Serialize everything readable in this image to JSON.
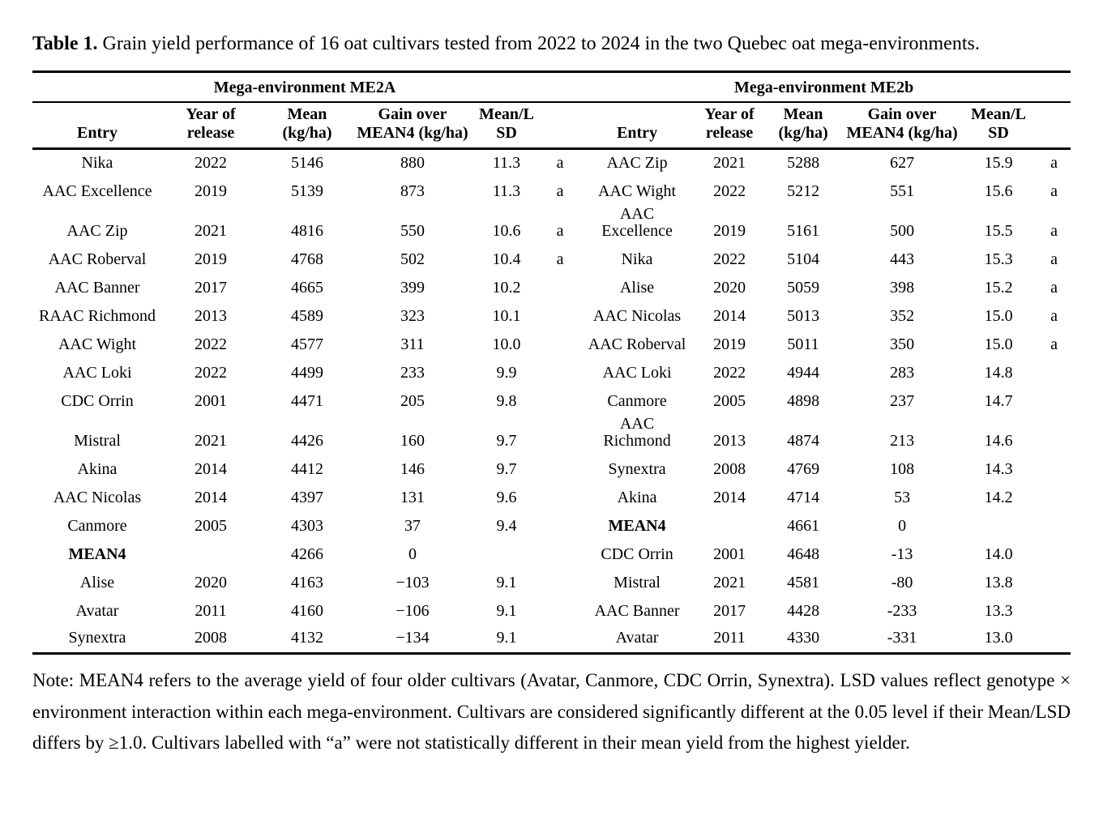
{
  "caption": {
    "label": "Table 1.",
    "text": "Grain yield performance of 16 oat cultivars tested from 2022 to 2024 in the two Quebec oat mega-environments."
  },
  "table": {
    "group_headers": [
      "Mega-environment ME2A",
      "Mega-environment ME2b"
    ],
    "columns": {
      "entry": "Entry",
      "year_l1": "Year of",
      "year_l2": "release",
      "mean_l1": "Mean",
      "mean_l2": "(kg/ha)",
      "gain_l1": "Gain over",
      "gain_l2": "MEAN4 (kg/ha)",
      "lsd_l1": "Mean/L",
      "lsd_l2": "SD",
      "sig": ""
    },
    "rows_me2a": [
      {
        "entry": "Nika",
        "year": "2022",
        "mean": "5146",
        "gain": "880",
        "mean_lsd": "11.3",
        "sig": "a"
      },
      {
        "entry": "AAC Excellence",
        "year": "2019",
        "mean": "5139",
        "gain": "873",
        "mean_lsd": "11.3",
        "sig": "a"
      },
      {
        "entry": "AAC Zip",
        "year": "2021",
        "mean": "4816",
        "gain": "550",
        "mean_lsd": "10.6",
        "sig": "a"
      },
      {
        "entry": "AAC Roberval",
        "year": "2019",
        "mean": "4768",
        "gain": "502",
        "mean_lsd": "10.4",
        "sig": "a"
      },
      {
        "entry": "AAC Banner",
        "year": "2017",
        "mean": "4665",
        "gain": "399",
        "mean_lsd": "10.2",
        "sig": ""
      },
      {
        "entry": "RAAC Richmond",
        "year": "2013",
        "mean": "4589",
        "gain": "323",
        "mean_lsd": "10.1",
        "sig": ""
      },
      {
        "entry": "AAC Wight",
        "year": "2022",
        "mean": "4577",
        "gain": "311",
        "mean_lsd": "10.0",
        "sig": ""
      },
      {
        "entry": "AAC Loki",
        "year": "2022",
        "mean": "4499",
        "gain": "233",
        "mean_lsd": "9.9",
        "sig": ""
      },
      {
        "entry": "CDC Orrin",
        "year": "2001",
        "mean": "4471",
        "gain": "205",
        "mean_lsd": "9.8",
        "sig": ""
      },
      {
        "entry": "Mistral",
        "year": "2021",
        "mean": "4426",
        "gain": "160",
        "mean_lsd": "9.7",
        "sig": ""
      },
      {
        "entry": "Akina",
        "year": "2014",
        "mean": "4412",
        "gain": "146",
        "mean_lsd": "9.7",
        "sig": ""
      },
      {
        "entry": "AAC Nicolas",
        "year": "2014",
        "mean": "4397",
        "gain": "131",
        "mean_lsd": "9.6",
        "sig": ""
      },
      {
        "entry": "Canmore",
        "year": "2005",
        "mean": "4303",
        "gain": "37",
        "mean_lsd": "9.4",
        "sig": ""
      },
      {
        "entry": "MEAN4",
        "bold": true,
        "year": "",
        "mean": "4266",
        "gain": "0",
        "mean_lsd": "",
        "sig": ""
      },
      {
        "entry": "Alise",
        "year": "2020",
        "mean": "4163",
        "gain": "−103",
        "mean_lsd": "9.1",
        "sig": ""
      },
      {
        "entry": "Avatar",
        "year": "2011",
        "mean": "4160",
        "gain": "−106",
        "mean_lsd": "9.1",
        "sig": ""
      },
      {
        "entry": "Synextra",
        "year": "2008",
        "mean": "4132",
        "gain": "−134",
        "mean_lsd": "9.1",
        "sig": ""
      }
    ],
    "rows_me2b": [
      {
        "entry": "AAC Zip",
        "year": "2021",
        "mean": "5288",
        "gain": "627",
        "mean_lsd": "15.9",
        "sig": "a"
      },
      {
        "entry": "AAC Wight",
        "year": "2022",
        "mean": "5212",
        "gain": "551",
        "mean_lsd": "15.6",
        "sig": "a"
      },
      {
        "entry": "AAC\nExcellence",
        "year": "2019",
        "mean": "5161",
        "gain": "500",
        "mean_lsd": "15.5",
        "sig": "a"
      },
      {
        "entry": "Nika",
        "year": "2022",
        "mean": "5104",
        "gain": "443",
        "mean_lsd": "15.3",
        "sig": "a"
      },
      {
        "entry": "Alise",
        "year": "2020",
        "mean": "5059",
        "gain": "398",
        "mean_lsd": "15.2",
        "sig": "a"
      },
      {
        "entry": "AAC Nicolas",
        "year": "2014",
        "mean": "5013",
        "gain": "352",
        "mean_lsd": "15.0",
        "sig": "a"
      },
      {
        "entry": "AAC Roberval",
        "year": "2019",
        "mean": "5011",
        "gain": "350",
        "mean_lsd": "15.0",
        "sig": "a"
      },
      {
        "entry": "AAC Loki",
        "year": "2022",
        "mean": "4944",
        "gain": "283",
        "mean_lsd": "14.8",
        "sig": ""
      },
      {
        "entry": "Canmore",
        "year": "2005",
        "mean": "4898",
        "gain": "237",
        "mean_lsd": "14.7",
        "sig": ""
      },
      {
        "entry": "AAC\nRichmond",
        "year": "2013",
        "mean": "4874",
        "gain": "213",
        "mean_lsd": "14.6",
        "sig": ""
      },
      {
        "entry": "Synextra",
        "year": "2008",
        "mean": "4769",
        "gain": "108",
        "mean_lsd": "14.3",
        "sig": ""
      },
      {
        "entry": "Akina",
        "year": "2014",
        "mean": "4714",
        "gain": "53",
        "mean_lsd": "14.2",
        "sig": ""
      },
      {
        "entry": "MEAN4",
        "bold": true,
        "year": "",
        "mean": "4661",
        "gain": "0",
        "mean_lsd": "",
        "sig": ""
      },
      {
        "entry": "CDC Orrin",
        "year": "2001",
        "mean": "4648",
        "gain": "-13",
        "mean_lsd": "14.0",
        "sig": ""
      },
      {
        "entry": "Mistral",
        "year": "2021",
        "mean": "4581",
        "gain": "-80",
        "mean_lsd": "13.8",
        "sig": ""
      },
      {
        "entry": "AAC Banner",
        "year": "2017",
        "mean": "4428",
        "gain": "-233",
        "mean_lsd": "13.3",
        "sig": ""
      },
      {
        "entry": "Avatar",
        "year": "2011",
        "mean": "4330",
        "gain": "-331",
        "mean_lsd": "13.0",
        "sig": ""
      }
    ]
  },
  "note": {
    "text": "Note: MEAN4 refers to the average yield of four older cultivars (Avatar, Canmore, CDC Orrin, Synextra). LSD values reflect genotype × environment interaction within each mega-environment. Cultivars are considered significantly different at the 0.05 level if their Mean/LSD differs by ≥1.0. Cultivars labelled with “a” were not statistically different in their mean yield from the highest yielder."
  }
}
